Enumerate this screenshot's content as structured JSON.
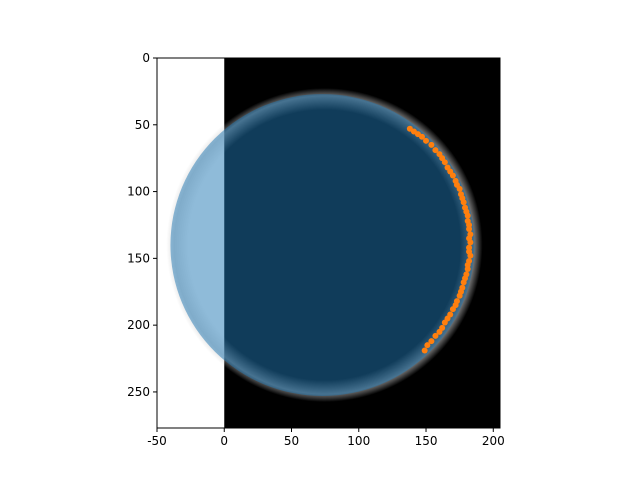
{
  "chart_data": {
    "type": "scatter",
    "title": "",
    "xlabel": "",
    "ylabel": "",
    "xlim": [
      -50,
      205
    ],
    "ylim": [
      0,
      277
    ],
    "y_inverted": true,
    "aspect_equal": true,
    "grid": false,
    "legend": "none",
    "x_ticks": [
      -50,
      0,
      50,
      100,
      150,
      200
    ],
    "y_ticks": [
      0,
      50,
      100,
      150,
      200,
      250
    ],
    "image": {
      "description": "black background with a faint bright limb of a sphere",
      "extent_x": [
        0,
        205
      ],
      "extent_y": [
        0,
        277
      ],
      "background_color": "#000000",
      "limb_color": "#c8c8c8"
    },
    "circle": {
      "center_x": 73,
      "center_y": 140,
      "radius": 113,
      "color": "#1f77b4",
      "alpha": 0.5
    },
    "points": {
      "color": "#ff7f0e",
      "x": [
        138,
        141,
        144,
        147,
        150,
        154,
        157,
        160,
        162,
        164,
        166,
        168,
        170,
        172,
        173,
        175,
        176,
        177,
        178,
        179,
        180,
        181,
        181,
        182,
        182,
        183,
        182,
        183,
        182,
        182,
        183,
        182,
        181,
        181,
        180,
        179,
        178,
        177,
        176,
        175,
        173,
        172,
        170,
        168,
        166,
        164,
        162,
        160,
        157,
        154,
        151,
        149
      ],
      "y": [
        53,
        55,
        57,
        59,
        62,
        65,
        69,
        72,
        75,
        78,
        82,
        85,
        88,
        92,
        95,
        98,
        102,
        105,
        108,
        112,
        115,
        118,
        122,
        125,
        128,
        132,
        135,
        138,
        142,
        145,
        148,
        152,
        155,
        158,
        162,
        165,
        168,
        172,
        175,
        178,
        182,
        185,
        188,
        192,
        195,
        198,
        202,
        205,
        208,
        212,
        215,
        219
      ]
    }
  }
}
